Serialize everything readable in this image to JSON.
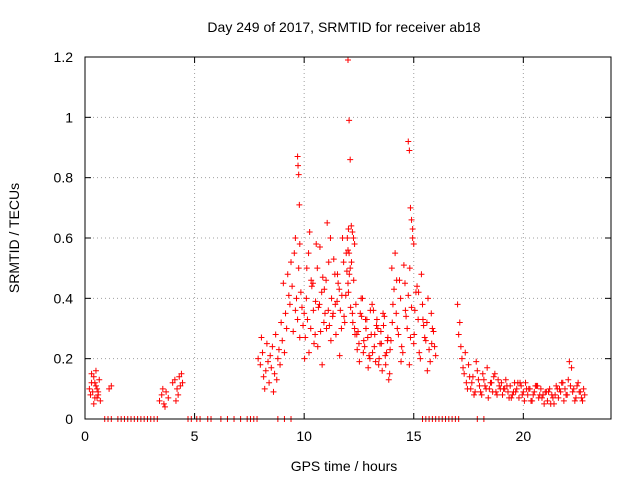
{
  "chart_data": {
    "type": "scatter",
    "title": "Day 249 of 2017, SRMTID for receiver ab18",
    "xlabel": "GPS time / hours",
    "ylabel": "SRMTID / TECUs",
    "xlim": [
      0,
      24
    ],
    "ylim": [
      0,
      1.2
    ],
    "xticks": [
      0,
      5,
      10,
      15,
      20
    ],
    "xtick_labels": [
      "0",
      "5",
      "10",
      "15",
      "20"
    ],
    "yticks": [
      0,
      0.2,
      0.4,
      0.6,
      0.8,
      1.0,
      1.2
    ],
    "ytick_labels": [
      "0",
      "0.2",
      "0.4",
      "0.6",
      "0.8",
      "1",
      "1.2"
    ],
    "grid": true,
    "marker": "+",
    "color": "#ff0000",
    "points_x": [
      0.2,
      0.25,
      0.3,
      0.35,
      0.4,
      0.45,
      0.5,
      0.55,
      0.6,
      0.65,
      0.7,
      0.3,
      0.4,
      0.5,
      0.6,
      0.45,
      0.55,
      1.1,
      1.2,
      3.4,
      3.5,
      3.6,
      3.7,
      3.8,
      3.55,
      3.65,
      4.0,
      4.1,
      4.2,
      4.3,
      4.4,
      4.25,
      4.35,
      4.15,
      4.45,
      7.9,
      8.0,
      8.05,
      8.1,
      8.15,
      8.2,
      8.25,
      8.3,
      8.35,
      8.4,
      8.45,
      8.5,
      8.55,
      8.6,
      8.65,
      8.7,
      8.75,
      8.8,
      8.85,
      8.9,
      8.95,
      9.0,
      9.05,
      9.1,
      9.15,
      9.2,
      9.25,
      9.3,
      9.35,
      9.4,
      9.45,
      9.5,
      9.55,
      9.6,
      9.65,
      9.7,
      9.75,
      9.8,
      9.85,
      9.9,
      9.95,
      9.7,
      9.72,
      9.75,
      9.78,
      9.6,
      9.8,
      10.0,
      10.1,
      10.2,
      10.3,
      10.4,
      10.5,
      10.6,
      10.7,
      10.8,
      10.9,
      11.0,
      11.1,
      11.2,
      11.3,
      11.4,
      11.5,
      11.6,
      11.7,
      11.8,
      11.9,
      10.05,
      10.15,
      10.25,
      10.35,
      10.45,
      10.55,
      10.65,
      10.75,
      10.85,
      10.95,
      11.05,
      11.15,
      11.25,
      11.35,
      11.45,
      11.55,
      11.65,
      11.75,
      11.85,
      11.95,
      10.02,
      10.22,
      10.42,
      10.62,
      10.82,
      11.02,
      11.22,
      11.42,
      11.62,
      11.82,
      10.12,
      10.32,
      10.52,
      10.72,
      10.92,
      11.12,
      11.32,
      11.52,
      11.72,
      11.92,
      12.0,
      12.05,
      12.1,
      12.15,
      12.2,
      12.25,
      12.3,
      12.0,
      12.05,
      12.1,
      12.2,
      12.3,
      12.4,
      12.5,
      12.6,
      12.7,
      12.8,
      12.9,
      13.0,
      13.1,
      13.2,
      13.3,
      13.4,
      13.5,
      13.6,
      13.7,
      13.8,
      13.9,
      12.02,
      12.12,
      12.22,
      12.32,
      12.42,
      12.52,
      12.62,
      12.72,
      12.82,
      12.92,
      13.02,
      13.12,
      13.22,
      13.32,
      13.42,
      13.52,
      13.62,
      13.72,
      13.82,
      13.92,
      12.06,
      12.16,
      12.26,
      12.36,
      12.46,
      12.56,
      12.66,
      12.76,
      12.86,
      12.96,
      13.06,
      13.16,
      13.26,
      13.36,
      13.46,
      13.56,
      13.66,
      13.76,
      13.86,
      13.96,
      11.97,
      12.0,
      12.02,
      14.0,
      14.1,
      14.2,
      14.3,
      14.4,
      14.5,
      14.6,
      14.7,
      14.8,
      14.9,
      15.0,
      15.1,
      15.2,
      15.3,
      15.4,
      15.5,
      15.6,
      15.7,
      15.8,
      15.9,
      16.0,
      14.05,
      14.15,
      14.25,
      14.35,
      14.45,
      14.55,
      14.65,
      14.75,
      14.85,
      14.95,
      15.05,
      15.15,
      15.25,
      15.35,
      15.45,
      15.55,
      15.65,
      15.75,
      15.85,
      15.95,
      14.02,
      14.22,
      14.42,
      14.62,
      14.82,
      15.02,
      15.22,
      15.42,
      15.62,
      15.82,
      14.75,
      14.8,
      14.85,
      14.9,
      14.95,
      15.0,
      17.0,
      17.1,
      17.2,
      17.3,
      17.4,
      17.5,
      17.6,
      17.7,
      17.8,
      17.9,
      18.0,
      18.1,
      18.2,
      18.3,
      18.4,
      18.5,
      18.6,
      18.7,
      18.8,
      18.9,
      17.05,
      17.15,
      17.25,
      17.35,
      17.45,
      17.55,
      17.65,
      17.75,
      17.85,
      17.95,
      18.05,
      18.15,
      18.25,
      18.35,
      18.45,
      18.55,
      18.65,
      18.75,
      18.85,
      18.95,
      19.0,
      19.1,
      19.2,
      19.3,
      19.4,
      19.5,
      19.6,
      19.7,
      19.8,
      19.9,
      20.0,
      20.1,
      20.2,
      20.3,
      20.4,
      20.5,
      20.6,
      20.7,
      20.8,
      20.9,
      21.0,
      21.1,
      21.2,
      21.3,
      21.4,
      21.5,
      21.6,
      21.7,
      21.8,
      21.9,
      22.0,
      22.1,
      22.2,
      22.3,
      22.4,
      22.5,
      22.6,
      22.7,
      22.8,
      19.05,
      19.25,
      19.45,
      19.65,
      19.85,
      20.05,
      20.25,
      20.45,
      20.65,
      20.85,
      21.05,
      21.25,
      21.45,
      21.65,
      21.85,
      22.05,
      22.25,
      22.45,
      22.65,
      19.15,
      19.35,
      19.55,
      19.75,
      19.95,
      20.15,
      20.35,
      20.55,
      20.75,
      20.95,
      21.15,
      21.35,
      21.55,
      21.75,
      21.95,
      22.15,
      22.35,
      22.55,
      22.75
    ],
    "points_y": [
      0.1,
      0.08,
      0.12,
      0.09,
      0.14,
      0.07,
      0.11,
      0.1,
      0.08,
      0.13,
      0.06,
      0.15,
      0.05,
      0.16,
      0.09,
      0.12,
      0.07,
      0.1,
      0.11,
      0.06,
      0.08,
      0.05,
      0.09,
      0.07,
      0.1,
      0.04,
      0.12,
      0.13,
      0.1,
      0.14,
      0.15,
      0.08,
      0.11,
      0.06,
      0.12,
      0.2,
      0.18,
      0.27,
      0.22,
      0.14,
      0.1,
      0.16,
      0.25,
      0.19,
      0.12,
      0.21,
      0.17,
      0.24,
      0.09,
      0.15,
      0.28,
      0.13,
      0.2,
      0.23,
      0.18,
      0.32,
      0.26,
      0.45,
      0.22,
      0.35,
      0.3,
      0.48,
      0.41,
      0.38,
      0.52,
      0.44,
      0.29,
      0.55,
      0.36,
      0.4,
      0.33,
      0.5,
      0.27,
      0.42,
      0.37,
      0.31,
      0.87,
      0.84,
      0.81,
      0.71,
      0.6,
      0.58,
      0.35,
      0.4,
      0.55,
      0.3,
      0.45,
      0.28,
      0.5,
      0.38,
      0.42,
      0.32,
      0.46,
      0.36,
      0.6,
      0.34,
      0.48,
      0.39,
      0.43,
      0.3,
      0.52,
      0.41,
      0.27,
      0.33,
      0.62,
      0.44,
      0.25,
      0.58,
      0.37,
      0.29,
      0.47,
      0.35,
      0.65,
      0.31,
      0.4,
      0.53,
      0.28,
      0.45,
      0.36,
      0.6,
      0.32,
      0.49,
      0.2,
      0.22,
      0.36,
      0.24,
      0.18,
      0.3,
      0.26,
      0.38,
      0.21,
      0.34,
      0.5,
      0.46,
      0.39,
      0.57,
      0.43,
      0.52,
      0.35,
      0.48,
      0.41,
      0.55,
      1.19,
      0.99,
      0.86,
      0.64,
      0.62,
      0.6,
      0.58,
      0.45,
      0.55,
      0.5,
      0.35,
      0.3,
      0.28,
      0.25,
      0.4,
      0.22,
      0.33,
      0.27,
      0.2,
      0.38,
      0.24,
      0.31,
      0.18,
      0.29,
      0.35,
      0.21,
      0.26,
      0.15,
      0.42,
      0.37,
      0.32,
      0.28,
      0.23,
      0.19,
      0.34,
      0.26,
      0.3,
      0.17,
      0.36,
      0.22,
      0.28,
      0.33,
      0.2,
      0.25,
      0.31,
      0.18,
      0.27,
      0.23,
      0.48,
      0.52,
      0.46,
      0.38,
      0.29,
      0.35,
      0.4,
      0.24,
      0.33,
      0.21,
      0.28,
      0.36,
      0.19,
      0.3,
      0.25,
      0.16,
      0.34,
      0.22,
      0.13,
      0.26,
      0.6,
      0.56,
      0.63,
      0.5,
      0.43,
      0.35,
      0.28,
      0.4,
      0.22,
      0.45,
      0.3,
      0.18,
      0.37,
      0.25,
      0.42,
      0.33,
      0.2,
      0.38,
      0.27,
      0.32,
      0.23,
      0.35,
      0.29,
      0.21,
      0.38,
      0.55,
      0.3,
      0.46,
      0.24,
      0.51,
      0.34,
      0.41,
      0.27,
      0.6,
      0.36,
      0.44,
      0.22,
      0.48,
      0.31,
      0.26,
      0.4,
      0.19,
      0.3,
      0.24,
      0.32,
      0.46,
      0.19,
      0.36,
      0.5,
      0.28,
      0.42,
      0.33,
      0.16,
      0.25,
      0.92,
      0.89,
      0.7,
      0.66,
      0.63,
      0.58,
      0.38,
      0.32,
      0.2,
      0.15,
      0.12,
      0.18,
      0.1,
      0.14,
      0.09,
      0.16,
      0.11,
      0.08,
      0.13,
      0.1,
      0.07,
      0.12,
      0.09,
      0.15,
      0.08,
      0.11,
      0.28,
      0.24,
      0.17,
      0.22,
      0.1,
      0.14,
      0.12,
      0.08,
      0.19,
      0.13,
      0.09,
      0.15,
      0.11,
      0.17,
      0.1,
      0.12,
      0.14,
      0.09,
      0.13,
      0.1,
      0.12,
      0.1,
      0.13,
      0.09,
      0.11,
      0.08,
      0.12,
      0.1,
      0.07,
      0.11,
      0.09,
      0.12,
      0.08,
      0.1,
      0.06,
      0.09,
      0.11,
      0.07,
      0.1,
      0.08,
      0.09,
      0.06,
      0.1,
      0.08,
      0.05,
      0.11,
      0.07,
      0.09,
      0.12,
      0.1,
      0.08,
      0.19,
      0.17,
      0.1,
      0.07,
      0.12,
      0.09,
      0.06,
      0.08,
      0.08,
      0.11,
      0.07,
      0.09,
      0.12,
      0.06,
      0.1,
      0.08,
      0.11,
      0.07,
      0.09,
      0.05,
      0.08,
      0.1,
      0.06,
      0.13,
      0.09,
      0.11,
      0.07,
      0.1,
      0.07,
      0.09,
      0.12,
      0.08,
      0.1,
      0.06,
      0.11,
      0.08,
      0.05,
      0.09,
      0.07,
      0.1,
      0.12,
      0.08,
      0.11,
      0.06,
      0.09,
      0.1
    ],
    "zero_points_x": [
      0.9,
      1.05,
      1.2,
      1.5,
      1.65,
      1.8,
      1.95,
      2.1,
      2.25,
      2.4,
      2.55,
      2.7,
      2.85,
      3.0,
      3.15,
      3.3,
      4.7,
      4.85,
      5.1,
      5.25,
      5.6,
      5.75,
      6.2,
      6.5,
      6.8,
      7.1,
      7.4,
      7.55,
      7.7,
      7.85,
      8.8,
      9.1,
      9.4,
      15.4,
      15.55,
      15.7,
      15.85,
      16.0,
      16.15,
      16.3,
      16.45,
      16.6,
      16.75,
      16.9,
      17.05,
      17.9,
      18.2
    ]
  }
}
